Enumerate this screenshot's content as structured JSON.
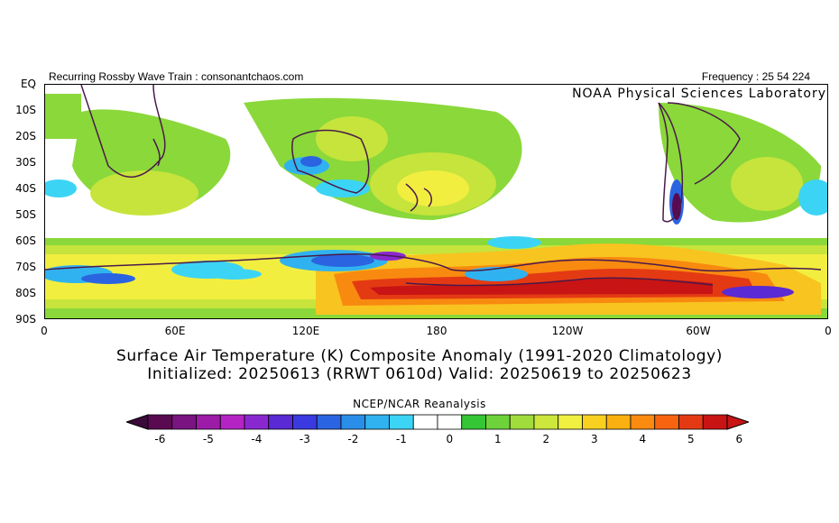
{
  "header": {
    "left": "Recurring Rossby Wave Train : consonantchaos.com",
    "right": "Frequency : 25 54 224",
    "lab": "NOAA Physical Sciences Laboratory"
  },
  "axes": {
    "y_labels": [
      "EQ",
      "10S",
      "20S",
      "30S",
      "40S",
      "50S",
      "60S",
      "70S",
      "80S",
      "90S"
    ],
    "x_labels": [
      "0",
      "60E",
      "120E",
      "180",
      "120W",
      "60W",
      "0"
    ]
  },
  "title": {
    "line1": "Surface Air Temperature (K) Composite Anomaly (1991-2020 Climatology)",
    "line2": "Initialized: 20250613 (RRWT 0610d) Valid: 20250619 to 20250623"
  },
  "colorbar": {
    "source": "NCEP/NCAR Reanalysis",
    "tick_labels": [
      "-6",
      "-5",
      "-4",
      "-3",
      "-2",
      "-1",
      "0",
      "1",
      "2",
      "3",
      "4",
      "5",
      "6"
    ],
    "colors": [
      "#5a0a50",
      "#7a1480",
      "#9c1ca8",
      "#b424c4",
      "#8a28d0",
      "#5a2ad4",
      "#3a3ae0",
      "#2a64e0",
      "#2a8ee8",
      "#30b2f0",
      "#3cd4f4",
      "#ffffff",
      "#ffffff",
      "#34c634",
      "#6ed23a",
      "#a0dc3c",
      "#cce63c",
      "#f0f040",
      "#f8d020",
      "#fab010",
      "#fa8a10",
      "#f66410",
      "#e43a14",
      "#c81414"
    ]
  }
}
